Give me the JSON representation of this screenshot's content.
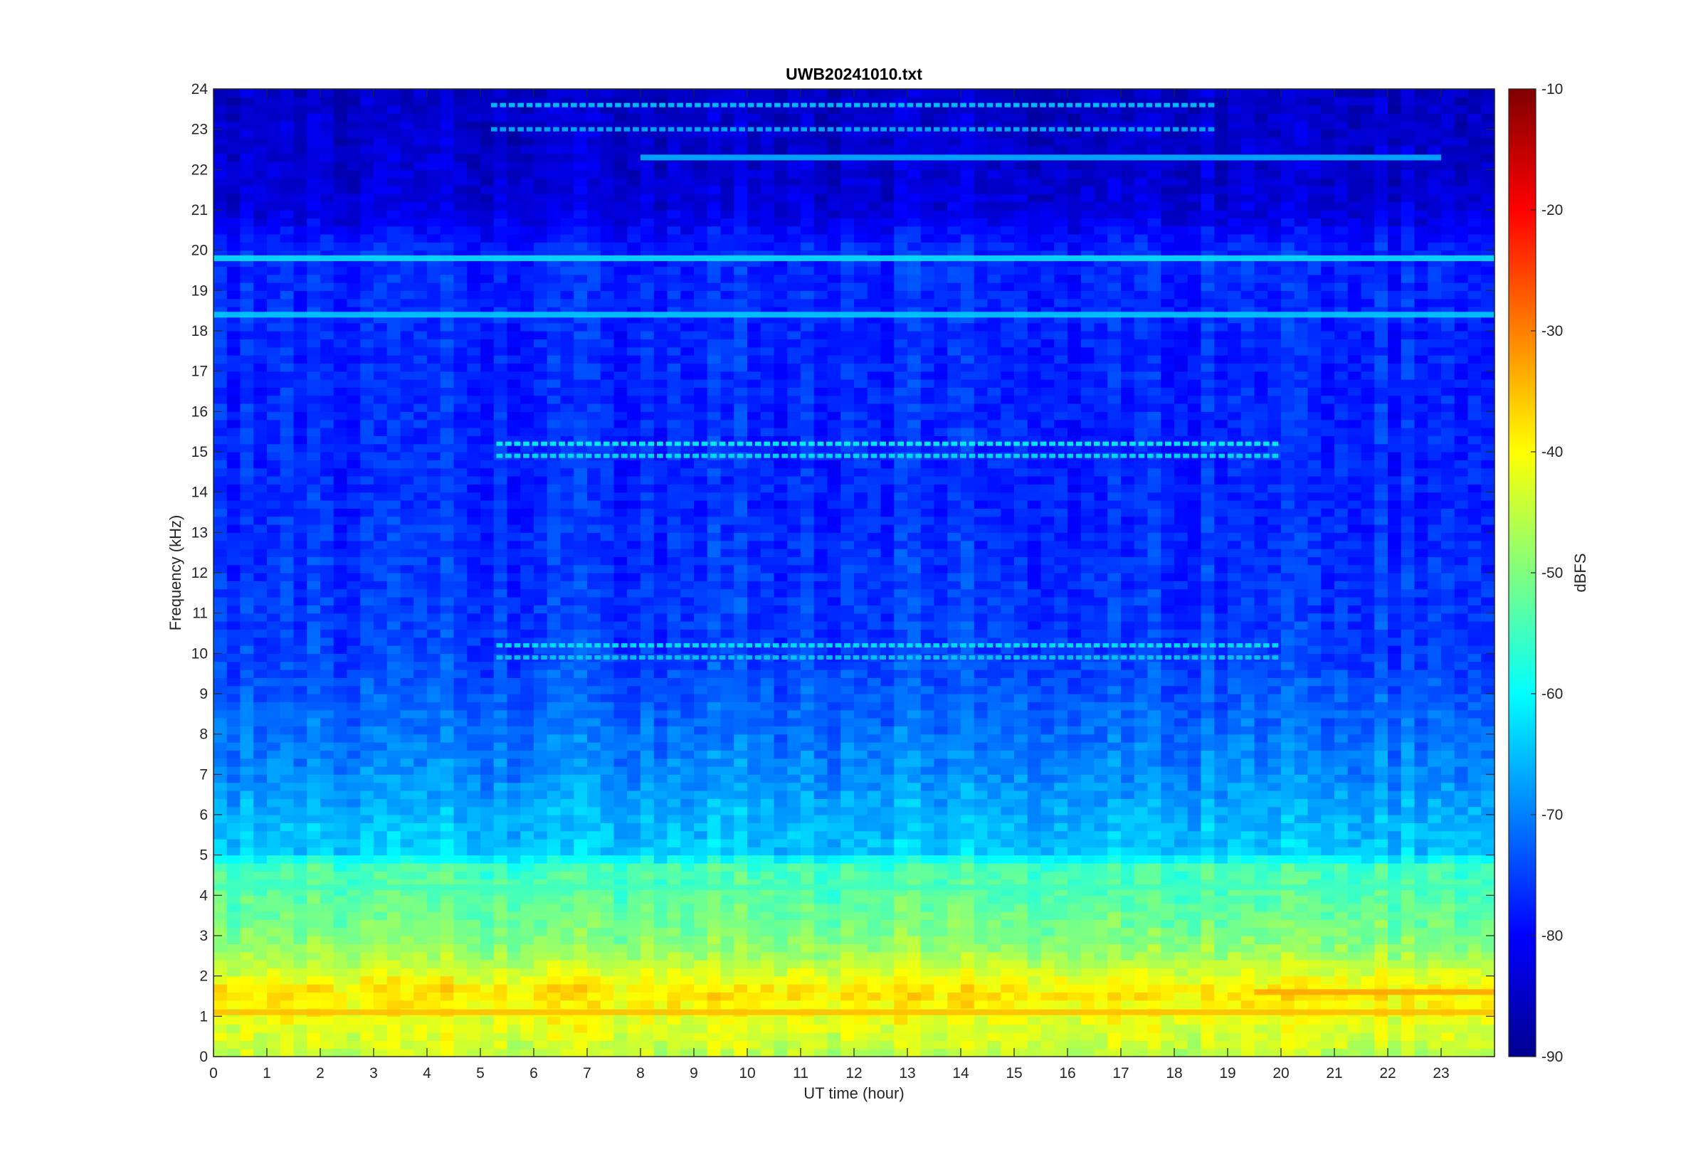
{
  "chart_data": {
    "type": "heatmap",
    "title": "UWB20241010.txt",
    "xlabel": "UT time (hour)",
    "ylabel": "Frequency (kHz)",
    "xlim": [
      0,
      24
    ],
    "ylim": [
      0,
      24
    ],
    "x_ticks": [
      "0",
      "1",
      "2",
      "3",
      "4",
      "5",
      "6",
      "7",
      "8",
      "9",
      "10",
      "11",
      "12",
      "13",
      "14",
      "15",
      "16",
      "17",
      "18",
      "19",
      "20",
      "21",
      "22",
      "23"
    ],
    "y_ticks": [
      "0",
      "1",
      "2",
      "3",
      "4",
      "5",
      "6",
      "7",
      "8",
      "9",
      "10",
      "11",
      "12",
      "13",
      "14",
      "15",
      "16",
      "17",
      "18",
      "19",
      "20",
      "21",
      "22",
      "23",
      "24"
    ],
    "colorbar": {
      "label": "dBFS",
      "colormap": "jet",
      "clim": [
        -90,
        -10
      ],
      "ticks": [
        "-10",
        "-20",
        "-30",
        "-40",
        "-50",
        "-60",
        "-70",
        "-80",
        "-90"
      ]
    },
    "colormap_stops": [
      "#00008F",
      "#0000FF",
      "#00FFFF",
      "#FFFF00",
      "#FF0000",
      "#800000"
    ],
    "level_profile_khz_dbfs": [
      [
        0,
        -45
      ],
      [
        1,
        -41
      ],
      [
        1.6,
        -38
      ],
      [
        2,
        -42
      ],
      [
        2.5,
        -47
      ],
      [
        3,
        -50
      ],
      [
        4,
        -53
      ],
      [
        4.8,
        -55
      ],
      [
        5,
        -64
      ],
      [
        6,
        -66
      ],
      [
        7,
        -69
      ],
      [
        8,
        -71
      ],
      [
        9,
        -73
      ],
      [
        10,
        -75
      ],
      [
        12,
        -76
      ],
      [
        14,
        -77
      ],
      [
        16,
        -77
      ],
      [
        18,
        -77
      ],
      [
        19,
        -77
      ],
      [
        20,
        -77
      ],
      [
        20.5,
        -80
      ],
      [
        21,
        -83
      ],
      [
        22,
        -84
      ],
      [
        24,
        -85
      ]
    ],
    "persistent_lines": [
      {
        "freq_khz": 19.8,
        "level_dbfs": -62,
        "t_start": 0,
        "t_end": 24
      },
      {
        "freq_khz": 18.4,
        "level_dbfs": -64,
        "t_start": 0,
        "t_end": 24
      },
      {
        "freq_khz": 1.6,
        "level_dbfs": -33,
        "t_start": 19.5,
        "t_end": 24
      },
      {
        "freq_khz": 1.1,
        "level_dbfs": -35,
        "t_start": 0,
        "t_end": 24
      },
      {
        "freq_khz": 4.2,
        "level_dbfs": -55,
        "t_start": 0,
        "t_end": 24
      },
      {
        "freq_khz": 22.3,
        "level_dbfs": -66,
        "t_start": 8,
        "t_end": 23
      }
    ],
    "pulsed_lines": [
      {
        "freq_khz": 15.2,
        "level_dbfs": -60,
        "t_start": 5.3,
        "t_end": 20
      },
      {
        "freq_khz": 14.9,
        "level_dbfs": -62,
        "t_start": 5.3,
        "t_end": 20
      },
      {
        "freq_khz": 10.2,
        "level_dbfs": -62,
        "t_start": 5.3,
        "t_end": 20
      },
      {
        "freq_khz": 9.9,
        "level_dbfs": -64,
        "t_start": 5.3,
        "t_end": 20
      },
      {
        "freq_khz": 23.6,
        "level_dbfs": -64,
        "t_start": 5.2,
        "t_end": 18.8
      },
      {
        "freq_khz": 23.0,
        "level_dbfs": -66,
        "t_start": 5.2,
        "t_end": 18.8
      }
    ]
  }
}
